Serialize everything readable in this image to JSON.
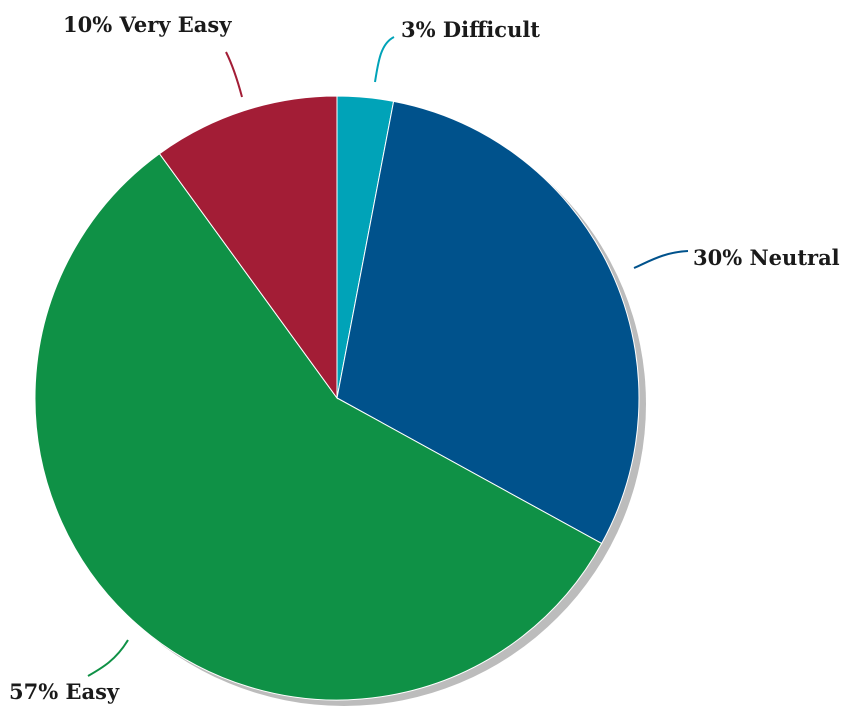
{
  "chart_data": {
    "type": "pie",
    "categories": [
      "Difficult",
      "Neutral",
      "Easy",
      "Very Easy"
    ],
    "values": [
      3,
      30,
      57,
      10
    ],
    "unit": "%",
    "labels": [
      "3% Difficult",
      "30% Neutral",
      "57% Easy",
      "10% Very Easy"
    ],
    "colors": [
      "#00a3b8",
      "#00528c",
      "#0f9146",
      "#a31d36"
    ],
    "start_angle": "12 o'clock",
    "direction": "clockwise",
    "shadow": true,
    "legend": "none"
  }
}
